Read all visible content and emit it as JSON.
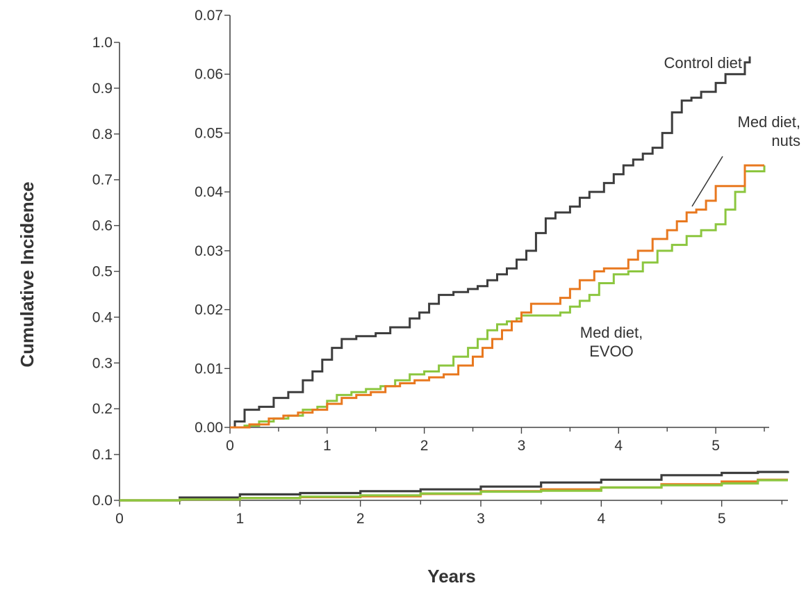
{
  "chart_data": [
    {
      "type": "line",
      "panel": "main",
      "xlabel": "Years",
      "ylabel": "Cumulative Incidence",
      "xlim": [
        0,
        5.55
      ],
      "ylim": [
        0,
        1.0
      ],
      "x_ticks": [
        0,
        1,
        2,
        3,
        4,
        5
      ],
      "x_tick_labels": [
        "0",
        "1",
        "2",
        "3",
        "4",
        "5"
      ],
      "y_ticks": [
        0,
        0.1,
        0.2,
        0.3,
        0.4,
        0.5,
        0.6,
        0.7,
        0.8,
        0.9,
        1.0
      ],
      "y_tick_labels": [
        "0.0",
        "0.1",
        "0.2",
        "0.3",
        "0.4",
        "0.5",
        "0.6",
        "0.7",
        "0.8",
        "0.9",
        "1.0"
      ],
      "grid": false,
      "series": [
        {
          "key": "control",
          "color": "#3d3d3d",
          "x": [
            0,
            0.5,
            1,
            1.5,
            2,
            2.5,
            3,
            3.5,
            4,
            4.5,
            5,
            5.3,
            5.55
          ],
          "y": [
            0,
            0.006,
            0.013,
            0.016,
            0.02,
            0.024,
            0.03,
            0.039,
            0.045,
            0.055,
            0.06,
            0.062,
            0.064
          ]
        },
        {
          "key": "nuts",
          "color": "#e8781f",
          "x": [
            0,
            0.5,
            1,
            1.5,
            2,
            2.5,
            3,
            3.5,
            4,
            4.5,
            5,
            5.3,
            5.55
          ],
          "y": [
            0,
            0.002,
            0.005,
            0.007,
            0.009,
            0.014,
            0.02,
            0.024,
            0.028,
            0.035,
            0.041,
            0.045,
            0.045
          ]
        },
        {
          "key": "evoo",
          "color": "#8cc63f",
          "x": [
            0,
            0.5,
            1,
            1.5,
            2,
            2.5,
            3,
            3.5,
            4,
            4.5,
            5,
            5.3,
            5.55
          ],
          "y": [
            0,
            0.002,
            0.005,
            0.008,
            0.011,
            0.015,
            0.019,
            0.021,
            0.028,
            0.033,
            0.037,
            0.044,
            0.044
          ]
        }
      ]
    },
    {
      "type": "line",
      "panel": "inset",
      "xlim": [
        0,
        5.55
      ],
      "ylim": [
        0,
        0.07
      ],
      "x_ticks": [
        0,
        1,
        2,
        3,
        4,
        5
      ],
      "x_tick_labels": [
        "0",
        "1",
        "2",
        "3",
        "4",
        "5"
      ],
      "y_ticks": [
        0,
        0.01,
        0.02,
        0.03,
        0.04,
        0.05,
        0.06,
        0.07
      ],
      "y_tick_labels": [
        "0.00",
        "0.01",
        "0.02",
        "0.03",
        "0.04",
        "0.05",
        "0.06",
        "0.07"
      ],
      "grid": false,
      "annotations": [
        {
          "text_lines": [
            "Control diet"
          ],
          "series": "control"
        },
        {
          "text_lines": [
            "Med diet,",
            "nuts"
          ],
          "series": "nuts"
        },
        {
          "text_lines": [
            "Med diet,",
            "EVOO"
          ],
          "series": "evoo"
        }
      ],
      "series": [
        {
          "key": "control",
          "color": "#3d3d3d",
          "x": [
            0,
            0.05,
            0.15,
            0.3,
            0.45,
            0.6,
            0.75,
            0.85,
            0.95,
            1.05,
            1.15,
            1.3,
            1.5,
            1.65,
            1.85,
            1.95,
            2.05,
            2.15,
            2.3,
            2.45,
            2.55,
            2.65,
            2.75,
            2.85,
            2.95,
            3.05,
            3.15,
            3.25,
            3.35,
            3.5,
            3.6,
            3.7,
            3.85,
            3.95,
            4.05,
            4.15,
            4.25,
            4.35,
            4.45,
            4.55,
            4.65,
            4.75,
            4.85,
            5.0,
            5.1,
            5.2,
            5.3,
            5.35
          ],
          "y": [
            0,
            0.001,
            0.003,
            0.0035,
            0.005,
            0.006,
            0.008,
            0.0095,
            0.0115,
            0.0135,
            0.015,
            0.0155,
            0.016,
            0.017,
            0.0185,
            0.0195,
            0.021,
            0.0225,
            0.023,
            0.0235,
            0.024,
            0.025,
            0.026,
            0.027,
            0.0285,
            0.03,
            0.033,
            0.0355,
            0.0365,
            0.0375,
            0.039,
            0.04,
            0.0415,
            0.043,
            0.0445,
            0.0455,
            0.0465,
            0.0475,
            0.05,
            0.0535,
            0.0555,
            0.056,
            0.057,
            0.0585,
            0.06,
            0.06,
            0.062,
            0.063
          ]
        },
        {
          "key": "evoo",
          "color": "#8cc63f",
          "x": [
            0,
            0.15,
            0.3,
            0.45,
            0.6,
            0.75,
            0.9,
            1.0,
            1.1,
            1.25,
            1.4,
            1.55,
            1.7,
            1.85,
            2.0,
            2.15,
            2.3,
            2.45,
            2.55,
            2.65,
            2.75,
            2.85,
            2.95,
            3.0,
            3.1,
            3.25,
            3.4,
            3.5,
            3.6,
            3.7,
            3.8,
            3.95,
            4.1,
            4.25,
            4.4,
            4.55,
            4.7,
            4.85,
            5.0,
            5.1,
            5.2,
            5.3,
            5.5
          ],
          "y": [
            0,
            0.0003,
            0.001,
            0.0015,
            0.002,
            0.003,
            0.0035,
            0.0045,
            0.0055,
            0.006,
            0.0065,
            0.007,
            0.008,
            0.009,
            0.0095,
            0.0105,
            0.012,
            0.0135,
            0.015,
            0.0165,
            0.0175,
            0.018,
            0.0185,
            0.019,
            0.019,
            0.019,
            0.0195,
            0.0205,
            0.0215,
            0.0225,
            0.0245,
            0.026,
            0.0265,
            0.028,
            0.03,
            0.031,
            0.0325,
            0.0335,
            0.0345,
            0.037,
            0.04,
            0.0435,
            0.0445
          ]
        },
        {
          "key": "nuts",
          "color": "#e8781f",
          "x": [
            0,
            0.2,
            0.4,
            0.55,
            0.7,
            0.85,
            1.0,
            1.15,
            1.3,
            1.45,
            1.6,
            1.75,
            1.9,
            2.05,
            2.2,
            2.35,
            2.5,
            2.6,
            2.7,
            2.8,
            2.9,
            3.0,
            3.1,
            3.25,
            3.4,
            3.5,
            3.6,
            3.75,
            3.85,
            4.0,
            4.1,
            4.2,
            4.35,
            4.5,
            4.6,
            4.7,
            4.8,
            4.9,
            5.0,
            5.1,
            5.2,
            5.3,
            5.5
          ],
          "y": [
            0,
            0.0005,
            0.0015,
            0.002,
            0.0025,
            0.003,
            0.004,
            0.005,
            0.0055,
            0.006,
            0.007,
            0.0075,
            0.008,
            0.0085,
            0.009,
            0.0105,
            0.012,
            0.0135,
            0.015,
            0.0165,
            0.018,
            0.0195,
            0.021,
            0.021,
            0.022,
            0.0235,
            0.025,
            0.0265,
            0.027,
            0.027,
            0.0285,
            0.03,
            0.032,
            0.0335,
            0.035,
            0.0365,
            0.037,
            0.0385,
            0.041,
            0.041,
            0.041,
            0.0445,
            0.0445
          ]
        }
      ]
    }
  ]
}
